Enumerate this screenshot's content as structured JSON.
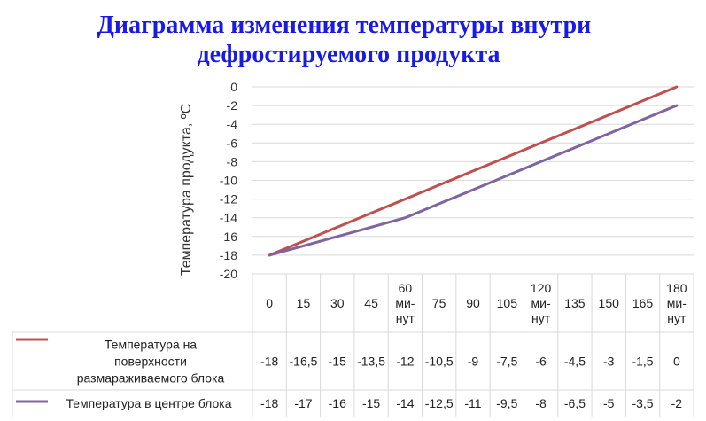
{
  "title_lines": [
    "Диаграмма изменения температуры внутри",
    "дефростируемого продукта"
  ],
  "chart_data": {
    "type": "line",
    "title": "Диаграмма изменения температуры внутри дефростируемого продукта",
    "ylabel": "Температура продукта, ºС",
    "xlabel": "",
    "ylim": [
      -20,
      0
    ],
    "yticks": [
      0,
      -2,
      -4,
      -6,
      -8,
      -10,
      -12,
      -14,
      -16,
      -18,
      -20
    ],
    "grid": true,
    "legend_position": "data-table",
    "categories": [
      "0",
      "15",
      "30",
      "45",
      "60 минут",
      "75",
      "90",
      "105",
      "120 минут",
      "135",
      "150",
      "165",
      "180 минут"
    ],
    "category_lines": [
      [
        "0"
      ],
      [
        "15"
      ],
      [
        "30"
      ],
      [
        "45"
      ],
      [
        "60",
        "ми-",
        "нут"
      ],
      [
        "75"
      ],
      [
        "90"
      ],
      [
        "105"
      ],
      [
        "120",
        "ми-",
        "нут"
      ],
      [
        "135"
      ],
      [
        "150"
      ],
      [
        "165"
      ],
      [
        "180",
        "ми-",
        "нут"
      ]
    ],
    "series": [
      {
        "name": "Температура на поверхности размараживаемого блока",
        "name_lines": [
          "Температура на",
          "поверхности",
          "размараживаемого блока"
        ],
        "color": "#c0504d",
        "values": [
          -18,
          -16.5,
          -15,
          -13.5,
          -12,
          -10.5,
          -9,
          -7.5,
          -6,
          -4.5,
          -3,
          -1.5,
          0
        ],
        "labels": [
          "-18",
          "-16,5",
          "-15",
          "-13,5",
          "-12",
          "-10,5",
          "-9",
          "-7,5",
          "-6",
          "-4,5",
          "-3",
          "-1,5",
          "0"
        ]
      },
      {
        "name": "Температура в центре блока",
        "name_lines": [
          "Температура в центре блока"
        ],
        "color": "#8064a2",
        "values": [
          -18,
          -17,
          -16,
          -15,
          -14,
          -12.5,
          -11,
          -9.5,
          -8,
          -6.5,
          -5,
          -3.5,
          -2
        ],
        "labels": [
          "-18",
          "-17",
          "-16",
          "-15",
          "-14",
          "-12,5",
          "-11",
          "-9,5",
          "-8",
          "-6,5",
          "-5",
          "-3,5",
          "-2"
        ]
      }
    ]
  }
}
